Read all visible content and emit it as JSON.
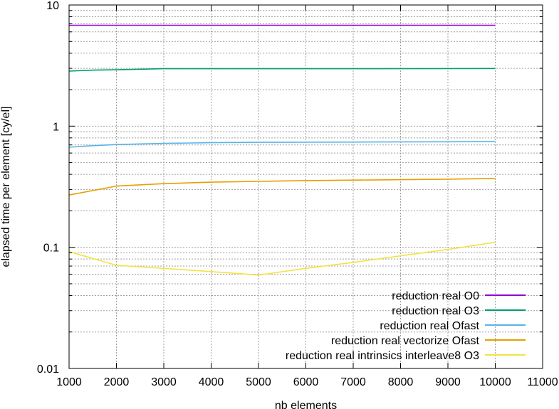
{
  "chart_data": {
    "type": "line",
    "title": "",
    "xlabel": "nb elements",
    "ylabel": "elapsed time per element [cy/el]",
    "xlim": [
      1000,
      11000
    ],
    "ylim": [
      0.01,
      10
    ],
    "yscale": "log",
    "grid": true,
    "legend_position": "bottom-right",
    "x_ticks": [
      1000,
      2000,
      3000,
      4000,
      5000,
      6000,
      7000,
      8000,
      9000,
      10000,
      11000
    ],
    "x_tick_labels": [
      "1000",
      "2000",
      "3000",
      "4000",
      "5000",
      "6000",
      "7000",
      "8000",
      "9000",
      "10000",
      "11000"
    ],
    "y_ticks": [
      0.01,
      0.1,
      1,
      10
    ],
    "y_tick_labels": [
      "0.01",
      "0.1",
      "1",
      "10"
    ],
    "series": [
      {
        "name": "reduction real O0",
        "color": "#9400d3",
        "points": [
          [
            1000,
            6.8
          ],
          [
            2000,
            6.8
          ],
          [
            3000,
            6.8
          ],
          [
            5000,
            6.8
          ],
          [
            7500,
            6.8
          ],
          [
            10000,
            6.8
          ]
        ]
      },
      {
        "name": "reduction real O3",
        "color": "#009e73",
        "points": [
          [
            1000,
            2.85
          ],
          [
            1500,
            2.9
          ],
          [
            2000,
            2.92
          ],
          [
            2500,
            2.95
          ],
          [
            3000,
            2.98
          ],
          [
            5000,
            2.98
          ],
          [
            7500,
            2.98
          ],
          [
            10000,
            2.99
          ]
        ]
      },
      {
        "name": "reduction real Ofast",
        "color": "#56b4e9",
        "points": [
          [
            1000,
            0.67
          ],
          [
            1500,
            0.69
          ],
          [
            2000,
            0.705
          ],
          [
            3000,
            0.72
          ],
          [
            4000,
            0.73
          ],
          [
            5000,
            0.735
          ],
          [
            7500,
            0.74
          ],
          [
            10000,
            0.745
          ]
        ]
      },
      {
        "name": "reduction real vectorize Ofast",
        "color": "#e69f00",
        "points": [
          [
            1000,
            0.27
          ],
          [
            2000,
            0.32
          ],
          [
            3000,
            0.335
          ],
          [
            4000,
            0.345
          ],
          [
            5000,
            0.35
          ],
          [
            6000,
            0.355
          ],
          [
            7500,
            0.36
          ],
          [
            9000,
            0.365
          ],
          [
            10000,
            0.37
          ]
        ]
      },
      {
        "name": "reduction real intrinsics interleave8 O3",
        "color": "#f0e442",
        "points": [
          [
            1000,
            0.092
          ],
          [
            2000,
            0.071
          ],
          [
            3000,
            0.067
          ],
          [
            4000,
            0.063
          ],
          [
            5000,
            0.059
          ],
          [
            6000,
            0.067
          ],
          [
            7000,
            0.075
          ],
          [
            8000,
            0.085
          ],
          [
            9000,
            0.096
          ],
          [
            10000,
            0.11
          ]
        ]
      }
    ]
  }
}
